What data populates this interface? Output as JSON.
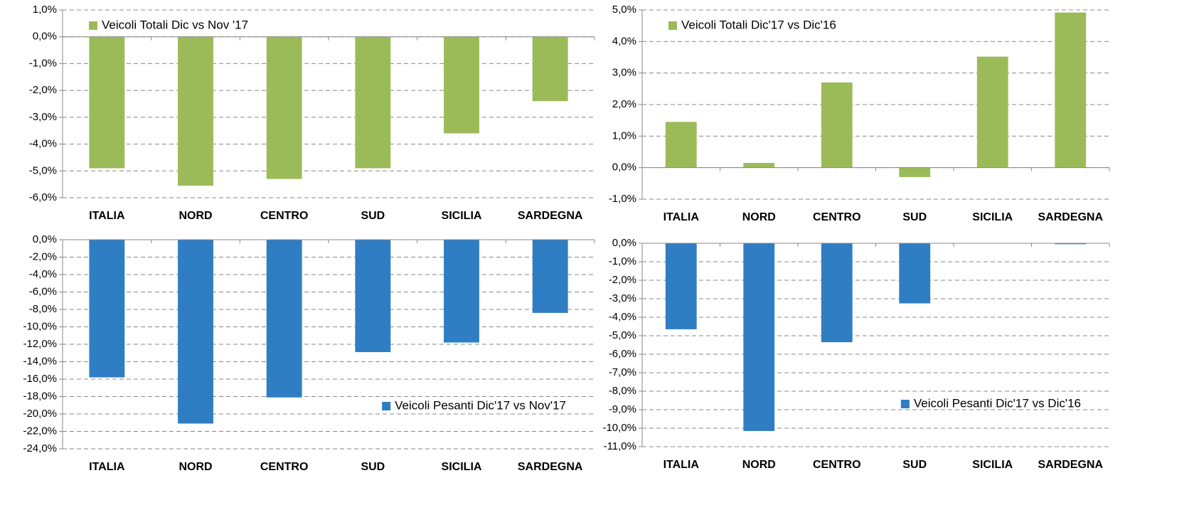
{
  "chart_data": [
    {
      "type": "bar",
      "legend": "upper left",
      "grid": true,
      "color": "#9bbb59",
      "series": [
        {
          "name": "Veicoli Totali Dic vs Nov '17",
          "color": "#9bbb59",
          "values": [
            -4.9,
            -5.55,
            -5.3,
            -4.9,
            -3.6,
            -2.4
          ]
        }
      ],
      "categories": [
        "ITALIA",
        "NORD",
        "CENTRO",
        "SUD",
        "SICILIA",
        "SARDEGNA"
      ],
      "ylim": [
        -6,
        1
      ],
      "yticks": [
        {
          "value": -6,
          "label": "-6,0%"
        },
        {
          "value": -5,
          "label": "-5,0%"
        },
        {
          "value": -4,
          "label": "-4,0%"
        },
        {
          "value": -3,
          "label": "-3,0%"
        },
        {
          "value": -2,
          "label": "-2,0%"
        },
        {
          "value": -1,
          "label": "-1,0%"
        },
        {
          "value": 0,
          "label": "0,0%"
        },
        {
          "value": 1,
          "label": "1,0%"
        }
      ]
    },
    {
      "type": "bar",
      "legend": "upper left",
      "grid": true,
      "series": [
        {
          "name": "Veicoli Totali Dic'17 vs Dic'16",
          "color": "#9bbb59",
          "values": [
            1.45,
            0.15,
            2.7,
            -0.3,
            3.52,
            4.92
          ]
        }
      ],
      "categories": [
        "ITALIA",
        "NORD",
        "CENTRO",
        "SUD",
        "SICILIA",
        "SARDEGNA"
      ],
      "ylim": [
        -1,
        5
      ],
      "yticks": [
        {
          "value": -1,
          "label": "-1,0%"
        },
        {
          "value": 0,
          "label": "0,0%"
        },
        {
          "value": 1,
          "label": "1,0%"
        },
        {
          "value": 2,
          "label": "2,0%"
        },
        {
          "value": 3,
          "label": "3,0%"
        },
        {
          "value": 4,
          "label": "4,0%"
        },
        {
          "value": 5,
          "label": "5,0%"
        }
      ]
    },
    {
      "type": "bar",
      "legend": "lower right",
      "grid": true,
      "series": [
        {
          "name": "Veicoli Pesanti Dic'17 vs Nov'17",
          "color": "#2f7dc3",
          "values": [
            -15.8,
            -21.1,
            -18.1,
            -12.9,
            -11.8,
            -8.4
          ]
        }
      ],
      "categories": [
        "ITALIA",
        "NORD",
        "CENTRO",
        "SUD",
        "SICILIA",
        "SARDEGNA"
      ],
      "ylim": [
        -24,
        0
      ],
      "yticks": [
        {
          "value": -24,
          "label": "-24,0%"
        },
        {
          "value": -22,
          "label": "-22,0%"
        },
        {
          "value": -20,
          "label": "-20,0%"
        },
        {
          "value": -18,
          "label": "-18,0%"
        },
        {
          "value": -16,
          "label": "-16,0%"
        },
        {
          "value": -14,
          "label": "-14,0%"
        },
        {
          "value": -12,
          "label": "-12,0%"
        },
        {
          "value": -10,
          "label": "-10,0%"
        },
        {
          "value": -8,
          "label": "-8,0%"
        },
        {
          "value": -6,
          "label": "-6,0%"
        },
        {
          "value": -4,
          "label": "-4,0%"
        },
        {
          "value": -2,
          "label": "-2,0%"
        },
        {
          "value": 0,
          "label": "0,0%"
        }
      ]
    },
    {
      "type": "bar",
      "legend": "lower right",
      "grid": true,
      "series": [
        {
          "name": "Veicoli Pesanti Dic'17 vs Dic'16",
          "color": "#2f7dc3",
          "values": [
            -4.65,
            -10.15,
            -5.35,
            -3.25,
            0,
            -0.05
          ]
        }
      ],
      "categories": [
        "ITALIA",
        "NORD",
        "CENTRO",
        "SUD",
        "SICILIA",
        "SARDEGNA"
      ],
      "ylim": [
        -11,
        0
      ],
      "yticks": [
        {
          "value": -11,
          "label": "-11,0%"
        },
        {
          "value": -10,
          "label": "-10,0%"
        },
        {
          "value": -9,
          "label": "-9,0%"
        },
        {
          "value": -8,
          "label": "-8,0%"
        },
        {
          "value": -7,
          "label": "-7,0%"
        },
        {
          "value": -6,
          "label": "-6,0%"
        },
        {
          "value": -5,
          "label": "-5,0%"
        },
        {
          "value": -4,
          "label": "-4,0%"
        },
        {
          "value": -3,
          "label": "-3,0%"
        },
        {
          "value": -2,
          "label": "-2,0%"
        },
        {
          "value": -1,
          "label": "-1,0%"
        },
        {
          "value": 0,
          "label": "0,0%"
        }
      ]
    }
  ]
}
